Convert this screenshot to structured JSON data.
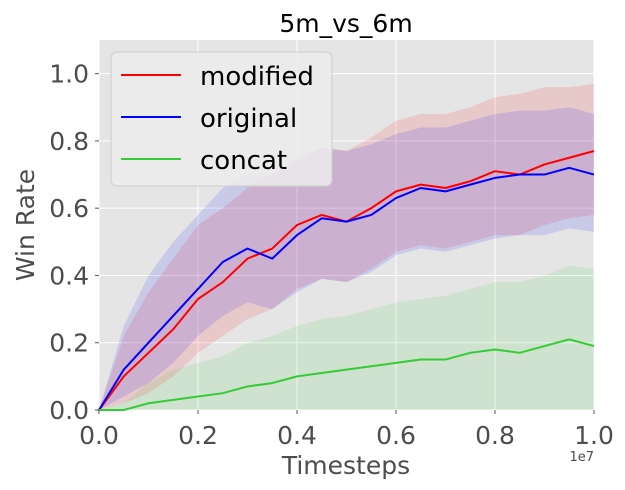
{
  "chart_data": {
    "type": "line",
    "title": "5m_vs_6m",
    "xlabel": "Timesteps",
    "ylabel": "Win Rate",
    "x_offset_label": "1e7",
    "xlim": [
      0.0,
      1.0
    ],
    "ylim": [
      0.0,
      1.1
    ],
    "x_ticks": [
      "0.0",
      "0.2",
      "0.4",
      "0.6",
      "0.8",
      "1.0"
    ],
    "y_ticks": [
      "0.0",
      "0.2",
      "0.4",
      "0.6",
      "0.8",
      "1.0"
    ],
    "grid": true,
    "legend_position": "top-left",
    "x": [
      0.0,
      0.05,
      0.1,
      0.15,
      0.2,
      0.25,
      0.3,
      0.35,
      0.4,
      0.45,
      0.5,
      0.55,
      0.6,
      0.65,
      0.7,
      0.75,
      0.8,
      0.85,
      0.9,
      0.95,
      1.0
    ],
    "series": [
      {
        "name": "modified",
        "color": "#ff0000",
        "values": [
          0.0,
          0.1,
          0.17,
          0.24,
          0.33,
          0.38,
          0.45,
          0.48,
          0.55,
          0.58,
          0.56,
          0.6,
          0.65,
          0.67,
          0.66,
          0.68,
          0.71,
          0.7,
          0.73,
          0.75,
          0.77
        ],
        "band_lower": [
          0.0,
          0.02,
          0.05,
          0.1,
          0.17,
          0.22,
          0.27,
          0.3,
          0.36,
          0.39,
          0.38,
          0.42,
          0.47,
          0.49,
          0.48,
          0.5,
          0.52,
          0.52,
          0.55,
          0.57,
          0.58
        ],
        "band_upper": [
          0.0,
          0.22,
          0.35,
          0.45,
          0.55,
          0.6,
          0.66,
          0.7,
          0.75,
          0.78,
          0.77,
          0.81,
          0.86,
          0.88,
          0.88,
          0.9,
          0.93,
          0.94,
          0.96,
          0.96,
          0.97
        ]
      },
      {
        "name": "original",
        "color": "#0000ff",
        "values": [
          0.0,
          0.12,
          0.2,
          0.28,
          0.36,
          0.44,
          0.48,
          0.45,
          0.52,
          0.57,
          0.56,
          0.58,
          0.63,
          0.66,
          0.65,
          0.67,
          0.69,
          0.7,
          0.7,
          0.72,
          0.7
        ],
        "band_lower": [
          0.0,
          0.04,
          0.08,
          0.14,
          0.22,
          0.28,
          0.32,
          0.3,
          0.35,
          0.39,
          0.38,
          0.41,
          0.46,
          0.48,
          0.47,
          0.49,
          0.51,
          0.52,
          0.52,
          0.54,
          0.53
        ],
        "band_upper": [
          0.0,
          0.25,
          0.4,
          0.5,
          0.58,
          0.66,
          0.7,
          0.7,
          0.74,
          0.78,
          0.77,
          0.79,
          0.82,
          0.84,
          0.84,
          0.86,
          0.88,
          0.89,
          0.89,
          0.9,
          0.88
        ]
      },
      {
        "name": "concat",
        "color": "#33cc33",
        "values": [
          0.0,
          0.0,
          0.02,
          0.03,
          0.04,
          0.05,
          0.07,
          0.08,
          0.1,
          0.11,
          0.12,
          0.13,
          0.14,
          0.15,
          0.15,
          0.17,
          0.18,
          0.17,
          0.19,
          0.21,
          0.19
        ],
        "band_lower": [
          0.0,
          0.0,
          0.0,
          0.0,
          0.0,
          0.0,
          0.0,
          0.0,
          0.0,
          0.0,
          0.0,
          0.0,
          0.0,
          0.0,
          0.0,
          0.0,
          0.0,
          0.0,
          0.0,
          0.0,
          0.0
        ],
        "band_upper": [
          0.0,
          0.02,
          0.08,
          0.12,
          0.14,
          0.16,
          0.2,
          0.22,
          0.25,
          0.27,
          0.28,
          0.3,
          0.32,
          0.33,
          0.34,
          0.36,
          0.38,
          0.38,
          0.4,
          0.43,
          0.42
        ]
      }
    ]
  }
}
